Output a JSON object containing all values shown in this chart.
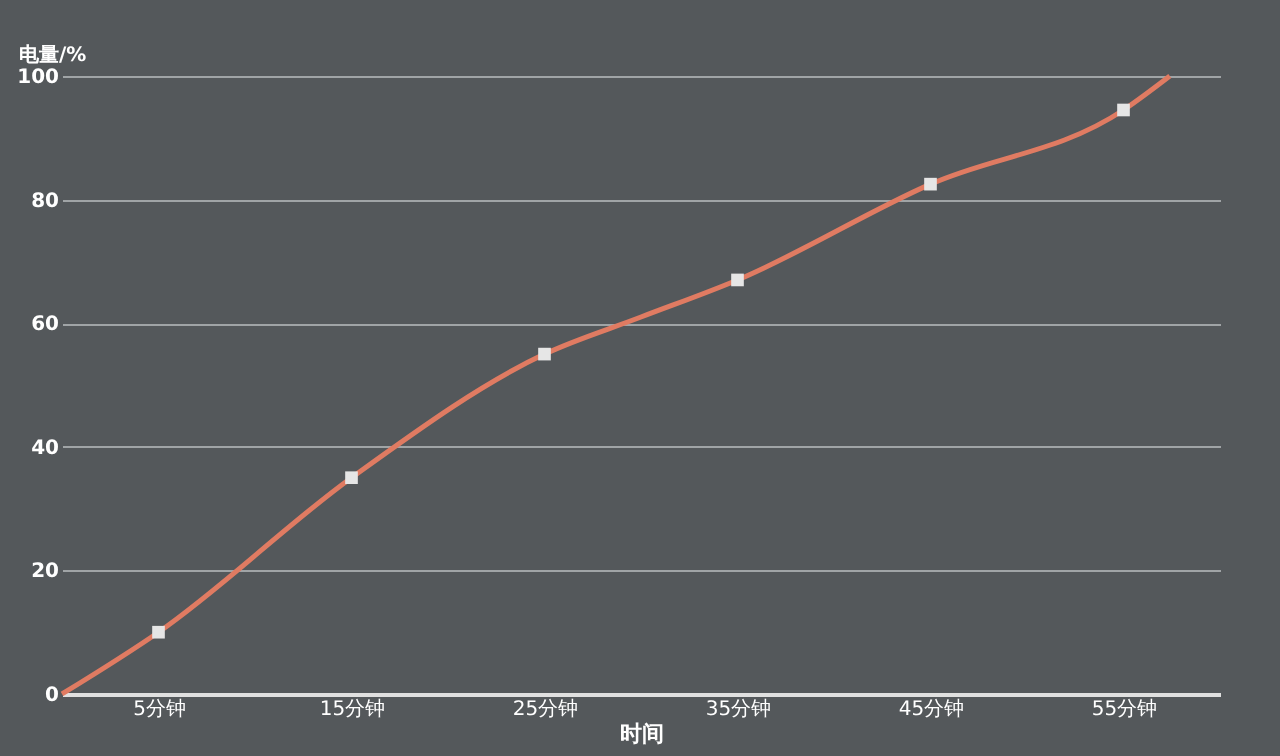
{
  "chart_data": {
    "type": "line",
    "ylabel": "电量/%",
    "xlabel": "时间",
    "xlim": [
      0,
      60
    ],
    "xticks": [
      {
        "value": 5,
        "label": "5分钟"
      },
      {
        "value": 15,
        "label": "15分钟"
      },
      {
        "value": 25,
        "label": "25分钟"
      },
      {
        "value": 35,
        "label": "35分钟"
      },
      {
        "value": 45,
        "label": "45分钟"
      },
      {
        "value": 55,
        "label": "55分钟"
      }
    ],
    "ylim": [
      0,
      100
    ],
    "yticks": [
      0,
      20,
      40,
      60,
      80,
      100
    ],
    "grid": "y",
    "series": [
      {
        "color": "#e07b62",
        "marker": "none",
        "x": [
          0,
          5,
          15,
          25,
          30,
          35,
          45,
          55,
          57.4
        ],
        "values": [
          0,
          10,
          35,
          55,
          61,
          67,
          82.5,
          94.5,
          100
        ]
      },
      {
        "type": "scatter",
        "color": "#e6e6e6",
        "marker": "square",
        "x": [
          5,
          15,
          25,
          35,
          45,
          55
        ],
        "values": [
          10,
          35,
          55,
          67,
          82.5,
          94.5
        ]
      }
    ]
  }
}
